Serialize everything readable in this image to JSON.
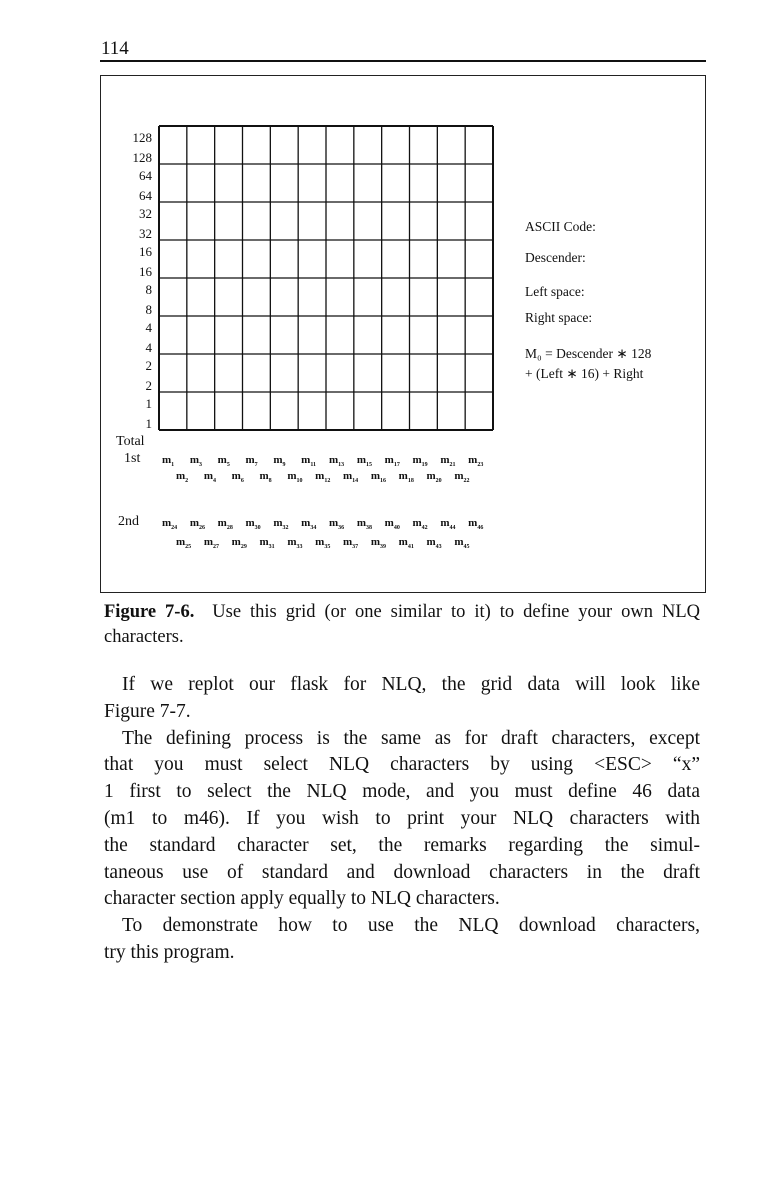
{
  "page_number": "114",
  "figure": {
    "row_labels": [
      [
        "128",
        "128"
      ],
      [
        "64",
        "64"
      ],
      [
        "32",
        "32"
      ],
      [
        "16",
        "16"
      ],
      [
        "8",
        "8"
      ],
      [
        "4",
        "4"
      ],
      [
        "2",
        "2"
      ],
      [
        "1",
        "1"
      ]
    ],
    "columns": 12,
    "rows": 8,
    "total_label": "Total",
    "first_label": "1st",
    "second_label": "2nd",
    "first_top": [
      "1",
      "3",
      "5",
      "7",
      "9",
      "11",
      "13",
      "15",
      "17",
      "19",
      "21",
      "23"
    ],
    "first_bottom": [
      "2",
      "4",
      "6",
      "8",
      "10",
      "12",
      "14",
      "16",
      "18",
      "20",
      "22"
    ],
    "second_top": [
      "24",
      "26",
      "28",
      "30",
      "32",
      "34",
      "36",
      "38",
      "40",
      "42",
      "44",
      "46"
    ],
    "second_bottom": [
      "25",
      "27",
      "29",
      "31",
      "33",
      "35",
      "37",
      "39",
      "41",
      "43",
      "45"
    ],
    "m_letter": "m",
    "side": {
      "ascii": "ASCII Code:",
      "descender": "Descender:",
      "left": "Left space:",
      "right": "Right space:",
      "formula_1": "M₀ = Descender ∗ 128",
      "formula_2": "+ (Left ∗ 16) + Right"
    }
  },
  "caption": {
    "label": "Figure 7-6.",
    "text": "Use this grid (or one similar to it) to define your own NLQ characters."
  },
  "body_lines": [
    "If we replot our flask for NLQ, the grid data will look like",
    "Figure 7-7.",
    "The defining process is the same as for draft characters, except",
    "that you must select NLQ characters by using <ESC> “x”",
    "1 first to select the NLQ mode, and you must define 46 data",
    "(m1 to m46). If you wish to print your NLQ characters with",
    "the standard character set, the remarks regarding the simul-",
    "taneous use of standard and download characters in the draft",
    "character section apply equally to NLQ characters.",
    "To demonstrate how to use the NLQ download characters,",
    "try this program."
  ]
}
